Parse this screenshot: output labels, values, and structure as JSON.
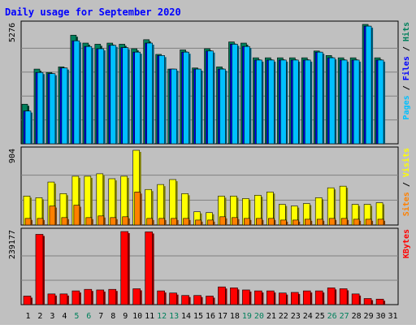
{
  "title": "Daily usage for September 2020",
  "colors": {
    "background": "#c0c0c0",
    "title": "#0000ff",
    "hits": "#00805c",
    "files": "#0000ff",
    "pages": "#00c0ff",
    "visits": "#ffff00",
    "sites": "#ff8000",
    "kbytes": "#ff0000",
    "weekend_label": "#00805c",
    "weekday_label": "#000000"
  },
  "chart_data": [
    {
      "type": "bar",
      "panel": "hits-files-pages",
      "ymax_label": "5276",
      "ylim": [
        0,
        5276
      ],
      "legend": [
        "Pages",
        "Files",
        "Hits"
      ],
      "categories": [
        "1",
        "2",
        "3",
        "4",
        "5",
        "6",
        "7",
        "8",
        "9",
        "10",
        "11",
        "12",
        "13",
        "14",
        "15",
        "16",
        "17",
        "18",
        "19",
        "20",
        "21",
        "22",
        "23",
        "24",
        "25",
        "26",
        "27",
        "28",
        "29",
        "30",
        "31"
      ],
      "weekend_days": [
        "5",
        "6",
        "12",
        "13",
        "19",
        "20",
        "26",
        "27"
      ],
      "series": [
        {
          "name": "Hits",
          "values": [
            1750,
            3300,
            3150,
            3400,
            4800,
            4450,
            4400,
            4450,
            4400,
            4200,
            4600,
            3950,
            3300,
            4150,
            3350,
            4200,
            3400,
            4500,
            4450,
            3800,
            3800,
            3800,
            3800,
            3800,
            4100,
            3900,
            3800,
            3800,
            5276,
            3800,
            null
          ]
        },
        {
          "name": "Files",
          "values": [
            1450,
            3150,
            3100,
            3350,
            4550,
            4300,
            4200,
            4350,
            4250,
            4050,
            4450,
            3900,
            3300,
            4050,
            3300,
            4100,
            3300,
            4400,
            4300,
            3700,
            3700,
            3700,
            3700,
            3700,
            4050,
            3800,
            3700,
            3700,
            5200,
            3700,
            null
          ]
        },
        {
          "name": "Pages",
          "values": [
            1450,
            3150,
            3100,
            3350,
            4550,
            4300,
            4200,
            4350,
            4250,
            4050,
            4450,
            3900,
            3300,
            4050,
            3300,
            4100,
            3300,
            4400,
            4300,
            3700,
            3700,
            3700,
            3700,
            3700,
            4050,
            3800,
            3700,
            3700,
            5200,
            3700,
            null
          ]
        }
      ]
    },
    {
      "type": "bar",
      "panel": "visits-sites",
      "ymax_label": "904",
      "ylim": [
        0,
        904
      ],
      "legend": [
        "Sites",
        "Visits"
      ],
      "series": [
        {
          "name": "Visits",
          "values": [
            350,
            330,
            520,
            380,
            590,
            590,
            620,
            560,
            590,
            904,
            430,
            490,
            550,
            380,
            160,
            150,
            350,
            350,
            320,
            360,
            400,
            250,
            230,
            260,
            330,
            450,
            470,
            250,
            250,
            270,
            null
          ]
        },
        {
          "name": "Sites",
          "values": [
            80,
            80,
            230,
            90,
            240,
            90,
            110,
            90,
            100,
            400,
            80,
            80,
            80,
            80,
            60,
            60,
            100,
            90,
            80,
            80,
            80,
            60,
            60,
            70,
            70,
            80,
            80,
            70,
            70,
            70,
            null
          ]
        }
      ]
    },
    {
      "type": "bar",
      "panel": "kbytes",
      "ymax_label": "239177",
      "ylim": [
        0,
        239177
      ],
      "legend": [
        "KBytes"
      ],
      "series": [
        {
          "name": "KBytes",
          "values": [
            28000,
            230000,
            35000,
            35000,
            45000,
            50000,
            48000,
            50000,
            239177,
            52000,
            238000,
            45000,
            38000,
            30000,
            30000,
            28000,
            58000,
            55000,
            48000,
            45000,
            45000,
            38000,
            40000,
            45000,
            45000,
            55000,
            52000,
            35000,
            20000,
            18000,
            null
          ]
        }
      ]
    }
  ]
}
